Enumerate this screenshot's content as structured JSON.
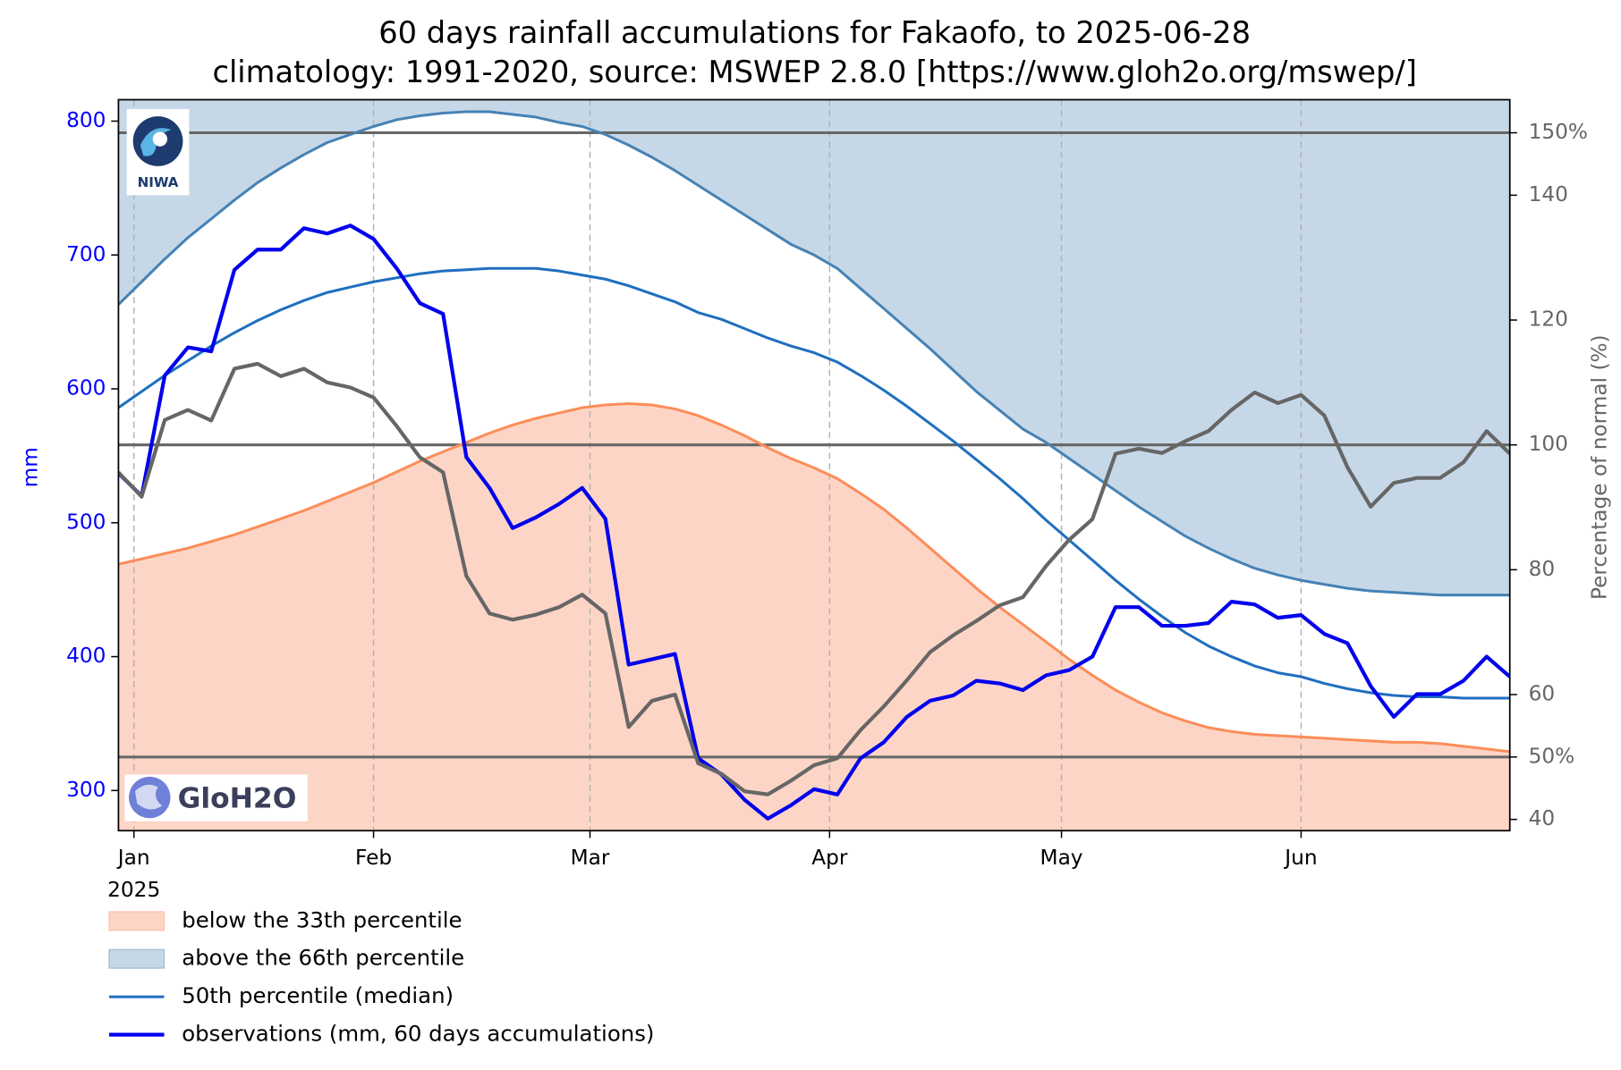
{
  "chart_data": {
    "type": "line",
    "title": "60 days rainfall accumulations for Fakaofo, to 2025-06-28",
    "subtitle": "climatology: 1991-2020, source: MSWEP 2.8.0 [https://www.gloh2o.org/mswep/]",
    "y_label": "mm",
    "y2_label": "Percentage of normal (%)",
    "x_year_label": "2025",
    "logos": {
      "niwa": "NIWA",
      "gloh2o": "GloH2O"
    },
    "x": [
      "2024-12-30",
      "2025-01-02",
      "2025-01-05",
      "2025-01-08",
      "2025-01-11",
      "2025-01-14",
      "2025-01-17",
      "2025-01-20",
      "2025-01-23",
      "2025-01-26",
      "2025-01-29",
      "2025-02-01",
      "2025-02-04",
      "2025-02-07",
      "2025-02-10",
      "2025-02-13",
      "2025-02-16",
      "2025-02-19",
      "2025-02-22",
      "2025-02-25",
      "2025-02-28",
      "2025-03-03",
      "2025-03-06",
      "2025-03-09",
      "2025-03-12",
      "2025-03-15",
      "2025-03-18",
      "2025-03-21",
      "2025-03-24",
      "2025-03-27",
      "2025-03-30",
      "2025-04-02",
      "2025-04-05",
      "2025-04-08",
      "2025-04-11",
      "2025-04-14",
      "2025-04-17",
      "2025-04-20",
      "2025-04-23",
      "2025-04-26",
      "2025-04-29",
      "2025-05-02",
      "2025-05-05",
      "2025-05-08",
      "2025-05-11",
      "2025-05-14",
      "2025-05-17",
      "2025-05-20",
      "2025-05-23",
      "2025-05-26",
      "2025-05-29",
      "2025-06-01",
      "2025-06-04",
      "2025-06-07",
      "2025-06-10",
      "2025-06-13",
      "2025-06-16",
      "2025-06-19",
      "2025-06-22",
      "2025-06-25",
      "2025-06-28"
    ],
    "xlim": [
      "2024-12-30",
      "2025-06-28"
    ],
    "xticks": [
      {
        "value": "2025-01-01",
        "label": "Jan"
      },
      {
        "value": "2025-02-01",
        "label": "Feb"
      },
      {
        "value": "2025-03-01",
        "label": "Mar"
      },
      {
        "value": "2025-04-01",
        "label": "Apr"
      },
      {
        "value": "2025-05-01",
        "label": "May"
      },
      {
        "value": "2025-06-01",
        "label": "Jun"
      }
    ],
    "x_grid": true,
    "ylim": [
      270,
      816
    ],
    "yticks": [
      300,
      400,
      500,
      600,
      700,
      800
    ],
    "y_tick_color": "#0000ff",
    "y2lim": [
      38.2,
      155.3
    ],
    "y2ticks": [
      40,
      {
        "value": 50,
        "label": "50%"
      },
      60,
      80,
      100,
      120,
      140,
      {
        "value": 150,
        "label": "150%"
      }
    ],
    "y2_tick_color": "#666666",
    "y2_reference_lines": [
      50,
      100,
      150
    ],
    "series": [
      {
        "name": "below the 33th percentile",
        "style": "area_below",
        "color": "#fc8d59",
        "fill": "#fdd5c6",
        "values": [
          469,
          473,
          477,
          481,
          486,
          491,
          497,
          503,
          509,
          516,
          523,
          530,
          538,
          546,
          553,
          560,
          567,
          573,
          578,
          582,
          586,
          588,
          589,
          588,
          585,
          580,
          573,
          565,
          556,
          548,
          541,
          533,
          522,
          510,
          496,
          481,
          466,
          451,
          437,
          424,
          411,
          398,
          386,
          375,
          366,
          358,
          352,
          347,
          344,
          342,
          341,
          340,
          339,
          338,
          337,
          336,
          336,
          335,
          333,
          331,
          329
        ]
      },
      {
        "name": "above the 66th percentile",
        "style": "area_above",
        "color": "#4682b4",
        "fill": "#c6d8e8",
        "values": [
          663,
          680,
          697,
          713,
          727,
          741,
          754,
          765,
          775,
          784,
          790,
          796,
          801,
          804,
          806,
          807,
          807,
          805,
          803,
          799,
          796,
          790,
          782,
          773,
          763,
          752,
          741,
          730,
          719,
          708,
          700,
          690,
          675,
          660,
          645,
          630,
          614,
          598,
          584,
          570,
          560,
          548,
          536,
          524,
          512,
          501,
          490,
          481,
          473,
          466,
          461,
          457,
          454,
          451,
          449,
          448,
          447,
          446,
          446,
          446,
          446
        ]
      },
      {
        "name": "50th percentile (median)",
        "style": "line",
        "color": "#1f6fbf",
        "values": [
          586,
          598,
          610,
          621,
          632,
          642,
          651,
          659,
          666,
          672,
          676,
          680,
          683,
          686,
          688,
          689,
          690,
          690,
          690,
          688,
          685,
          682,
          677,
          671,
          665,
          657,
          652,
          645,
          638,
          632,
          627,
          620,
          610,
          599,
          587,
          574,
          561,
          547,
          533,
          518,
          502,
          487,
          472,
          457,
          443,
          430,
          418,
          408,
          400,
          393,
          388,
          385,
          380,
          376,
          373,
          371,
          370,
          370,
          369,
          369,
          369
        ]
      },
      {
        "name": "observations (mm, 60 days accumulations)",
        "style": "line_bold",
        "color": "#0000ee",
        "values": [
          537,
          520,
          610,
          631,
          628,
          689,
          704,
          704,
          720,
          716,
          722,
          712,
          690,
          664,
          656,
          549,
          526,
          496,
          504,
          514,
          526,
          503,
          394,
          398,
          402,
          324,
          312,
          293,
          279,
          289,
          301,
          297,
          324,
          336,
          355,
          367,
          371,
          382,
          380,
          375,
          386,
          390,
          400,
          437,
          437,
          423,
          423,
          425,
          441,
          439,
          429,
          431,
          417,
          410,
          378,
          355,
          372,
          372,
          382,
          400,
          385
        ]
      }
    ],
    "percent_of_normal": {
      "axis": "y2",
      "color": "#666666",
      "values": [
        95.6,
        91.7,
        104,
        105.6,
        103.9,
        112.2,
        113,
        111,
        112.2,
        110,
        109.2,
        107.6,
        103,
        98,
        95.6,
        79,
        73,
        72,
        72.8,
        74,
        76,
        73,
        54.8,
        59,
        60,
        49,
        47.3,
        44.5,
        44,
        46.2,
        48.7,
        49.8,
        54.3,
        58.1,
        62.3,
        66.8,
        69.5,
        71.8,
        74.3,
        75.6,
        80.6,
        84.8,
        88.1,
        98.6,
        99.4,
        98.7,
        100.6,
        102.2,
        105.6,
        108.4,
        106.7,
        108,
        104.7,
        96.4,
        90.1,
        93.9,
        94.7,
        94.7,
        97.2,
        102.2,
        98.6
      ]
    }
  }
}
